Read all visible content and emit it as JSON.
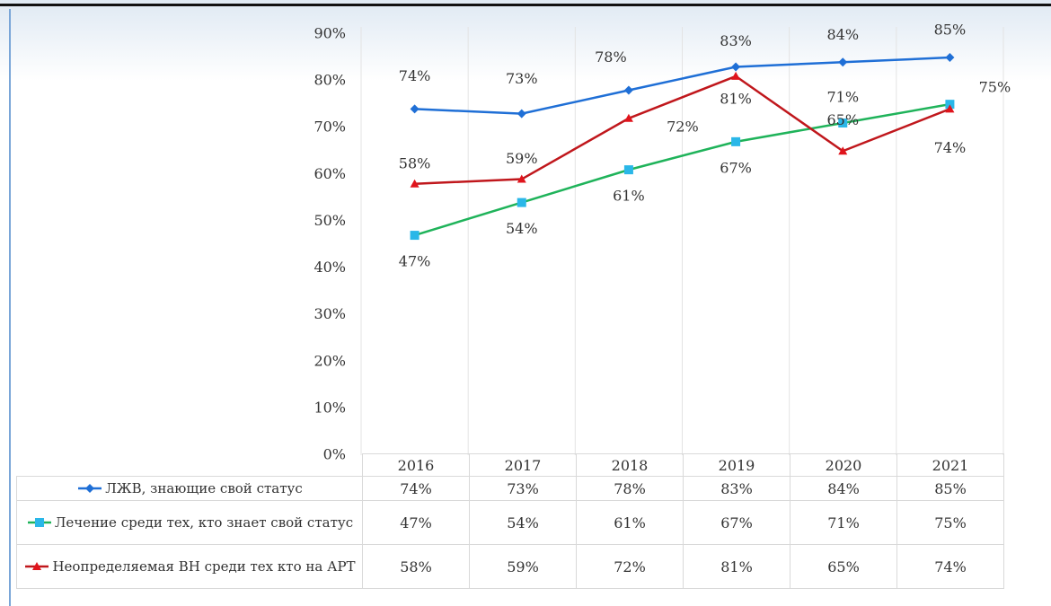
{
  "chart_data": {
    "type": "line",
    "categories": [
      "2016",
      "2017",
      "2018",
      "2019",
      "2020",
      "2021"
    ],
    "ylim": [
      0,
      90
    ],
    "yticks": [
      {
        "value": 0,
        "label": "0%"
      },
      {
        "value": 10,
        "label": "10%"
      },
      {
        "value": 20,
        "label": "20%"
      },
      {
        "value": 30,
        "label": "30%"
      },
      {
        "value": 40,
        "label": "40%"
      },
      {
        "value": 50,
        "label": "50%"
      },
      {
        "value": 60,
        "label": "60%"
      },
      {
        "value": 70,
        "label": "70%"
      },
      {
        "value": 80,
        "label": "80%"
      },
      {
        "value": 90,
        "label": "90%"
      }
    ],
    "grid": true,
    "series": [
      {
        "name": "ЛЖВ, знающие свой статус",
        "color": "#1f6fd6",
        "marker": "diamond",
        "marker_color": "#1f6fd6",
        "values": [
          74,
          73,
          78,
          83,
          84,
          85
        ],
        "value_labels": [
          "74%",
          "73%",
          "78%",
          "83%",
          "84%",
          "85%"
        ]
      },
      {
        "name": "Лечение среди тех, кто знает свой статус",
        "color": "#1fb35a",
        "marker": "square",
        "marker_color": "#2ab7e8",
        "values": [
          47,
          54,
          61,
          67,
          71,
          75
        ],
        "value_labels": [
          "47%",
          "54%",
          "61%",
          "67%",
          "71%",
          "75%"
        ]
      },
      {
        "name": "Неопределяемая ВН среди тех кто на АРТ",
        "color": "#c0171c",
        "marker": "triangle",
        "marker_color": "#e0141c",
        "values": [
          58,
          59,
          72,
          81,
          65,
          74
        ],
        "value_labels": [
          "58%",
          "59%",
          "72%",
          "81%",
          "65%",
          "74%"
        ]
      }
    ]
  }
}
